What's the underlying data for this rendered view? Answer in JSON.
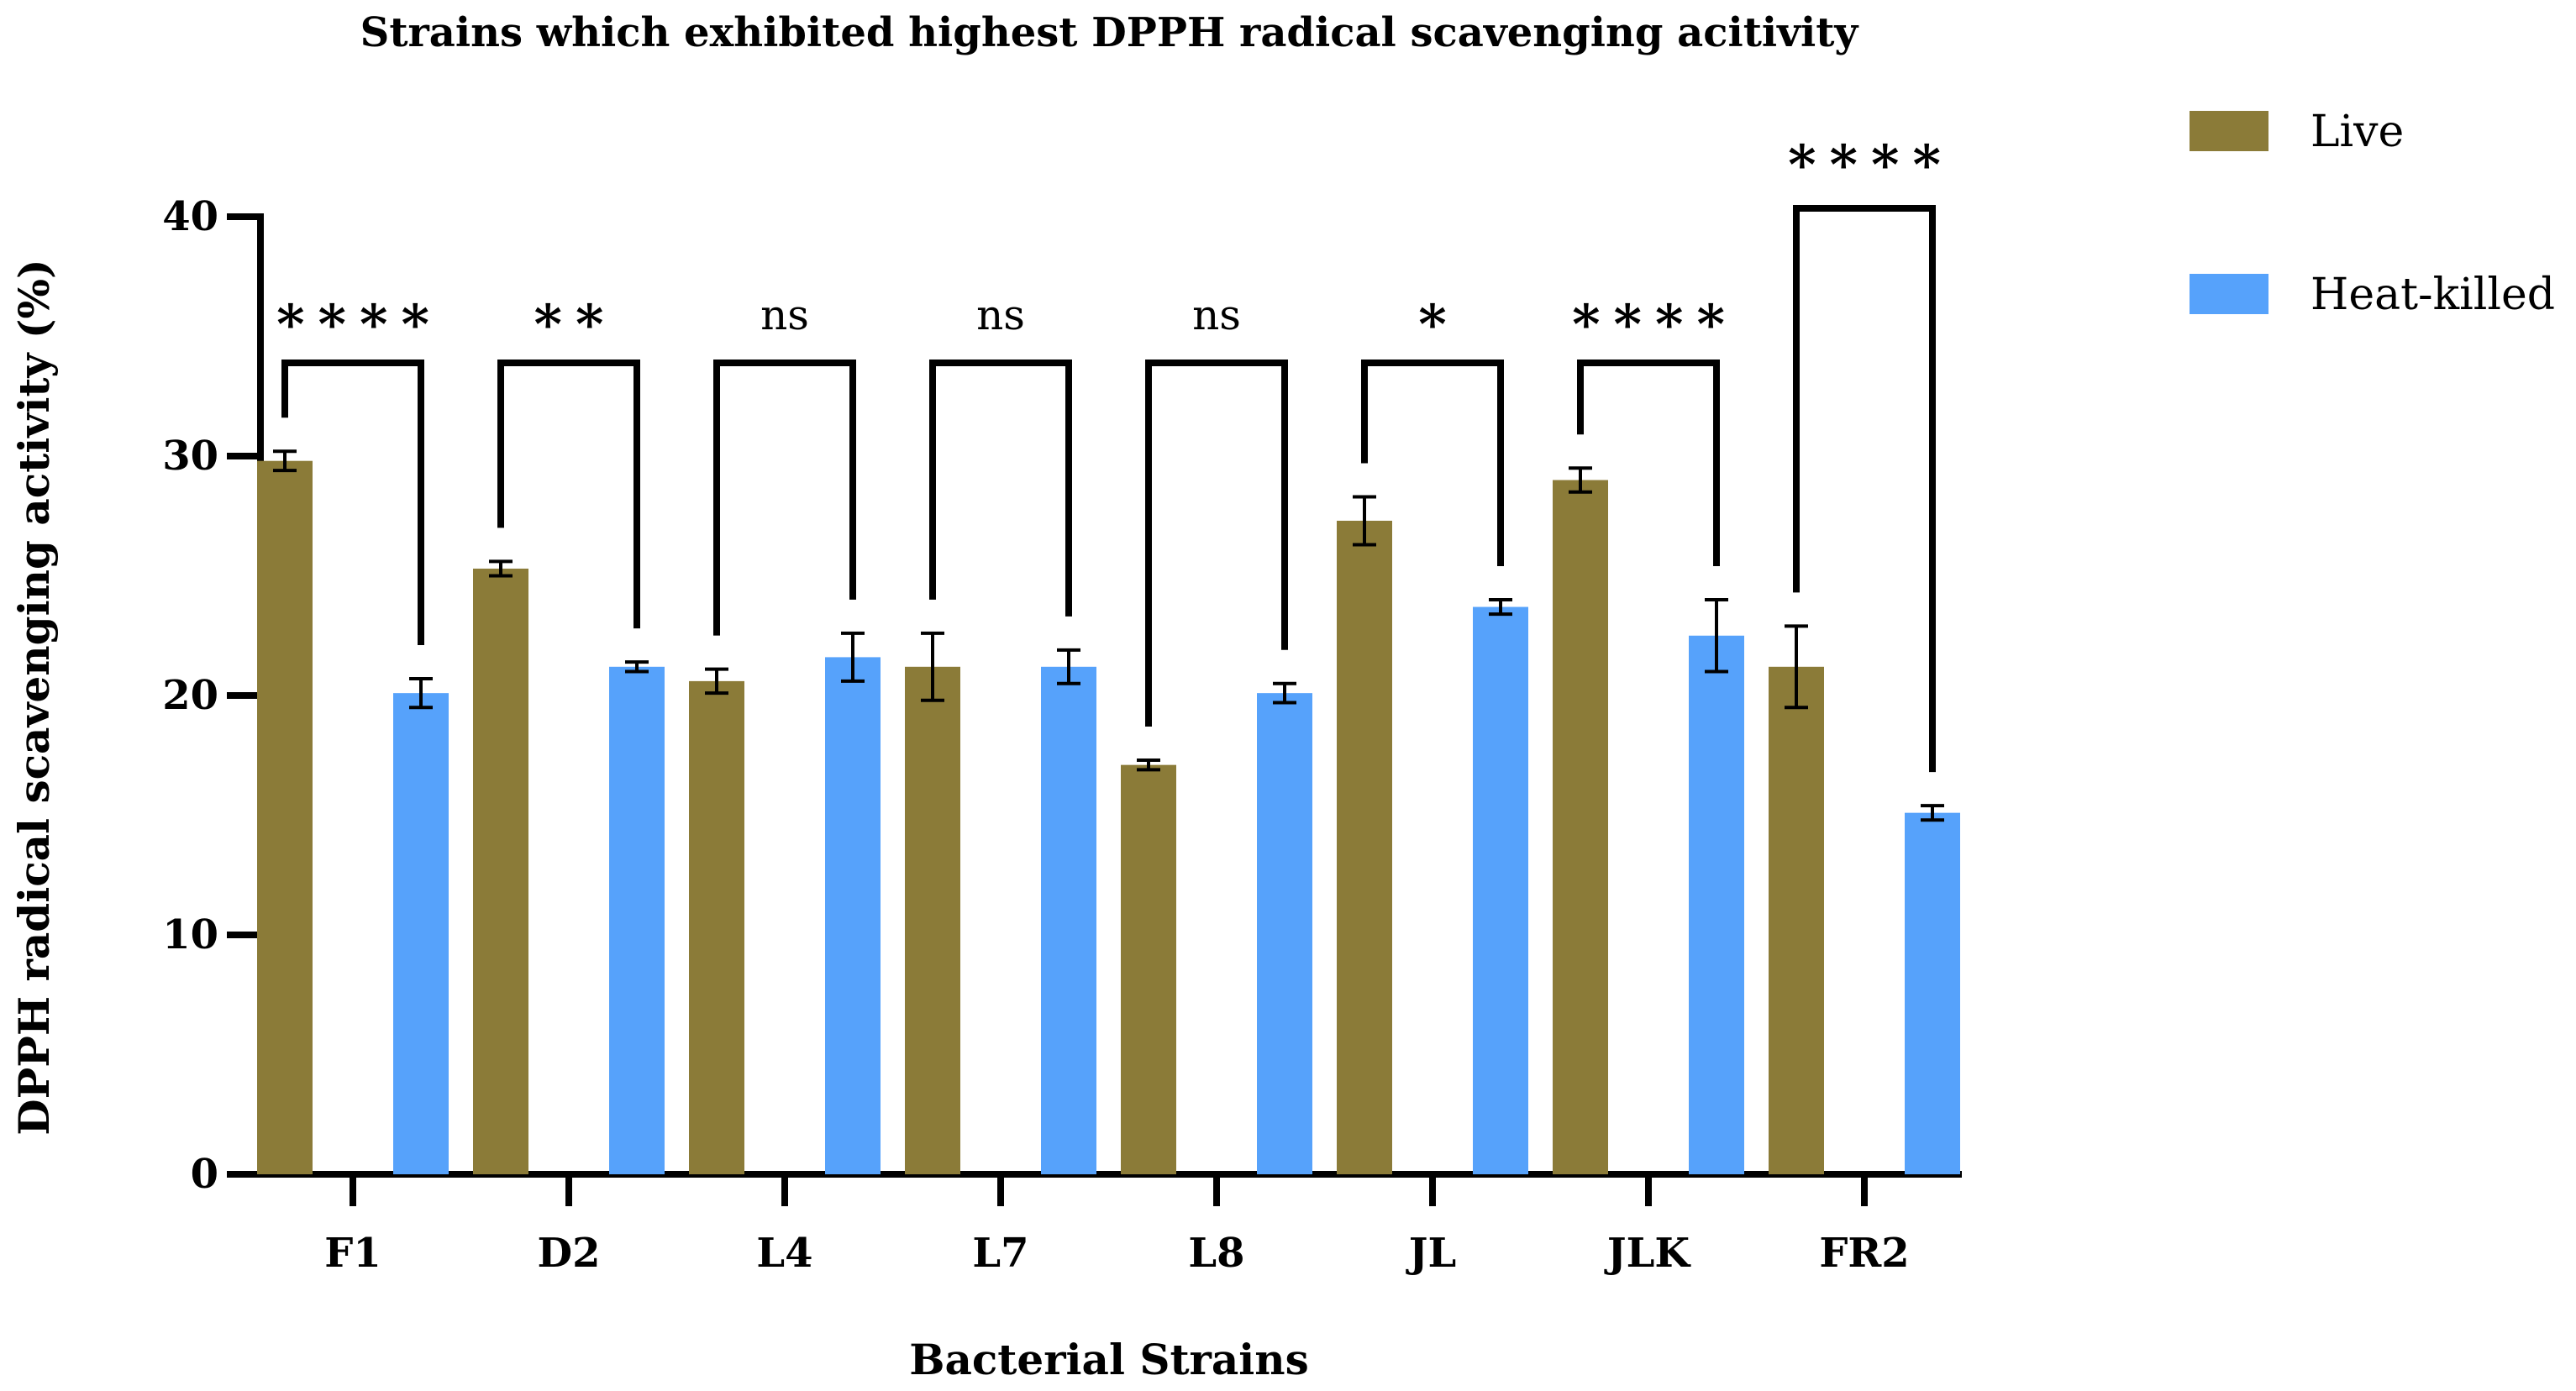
{
  "chart_data": {
    "type": "bar",
    "title": "Strains which exhibited highest DPPH radical scavenging acitivity",
    "xlabel": "Bacterial Strains",
    "ylabel": "DPPH radical scavenging activity (%)",
    "ylim": [
      0,
      40
    ],
    "yticks": [
      0,
      10,
      20,
      30,
      40
    ],
    "categories": [
      "F1",
      "D2",
      "L4",
      "L7",
      "L8",
      "JL",
      "JLK",
      "FR2"
    ],
    "series": [
      {
        "name": "Live",
        "color": "#8B7B38",
        "values": [
          29.8,
          25.3,
          20.6,
          21.2,
          17.1,
          27.3,
          29.0,
          21.2
        ],
        "errors": [
          0.4,
          0.3,
          0.5,
          1.4,
          0.2,
          1.0,
          0.5,
          1.7
        ]
      },
      {
        "name": "Heat-killed",
        "color": "#56A2FB",
        "values": [
          20.1,
          21.2,
          21.6,
          21.2,
          20.1,
          23.7,
          22.5,
          15.1
        ],
        "errors": [
          0.6,
          0.2,
          1.0,
          0.7,
          0.4,
          0.3,
          1.5,
          0.3
        ]
      }
    ],
    "significance": [
      "****",
      "**",
      "ns",
      "ns",
      "ns",
      "*",
      "****",
      "****"
    ],
    "legend_position": "top-right",
    "grid": false
  }
}
